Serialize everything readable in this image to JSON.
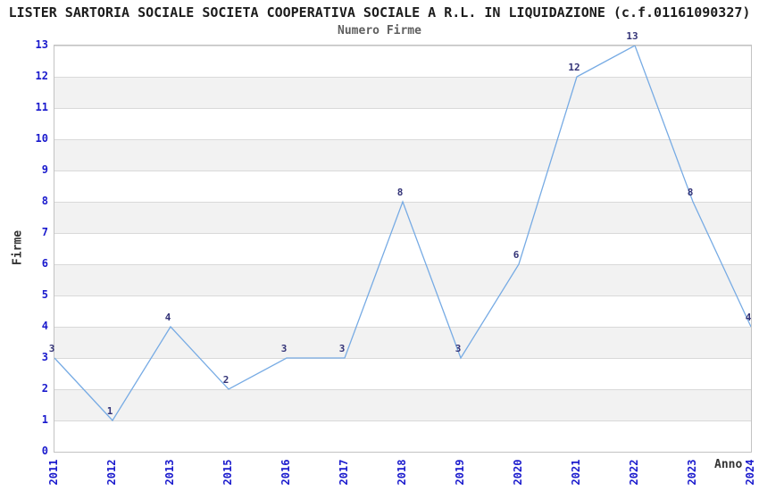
{
  "header": {
    "title": "LISTER SARTORIA SOCIALE SOCIETA COOPERATIVA SOCIALE A R.L. IN LIQUIDAZIONE (c.f.01161090327)",
    "subtitle": "Numero Firme"
  },
  "chart_data": {
    "type": "line",
    "title": "Numero Firme",
    "xlabel": "Anno",
    "ylabel": "Firme",
    "categories": [
      "2011",
      "2012",
      "2013",
      "2015",
      "2016",
      "2017",
      "2018",
      "2019",
      "2020",
      "2021",
      "2022",
      "2023",
      "2024"
    ],
    "values": [
      3,
      1,
      4,
      2,
      3,
      3,
      8,
      3,
      6,
      12,
      13,
      8,
      4
    ],
    "yticks": [
      0,
      1,
      2,
      3,
      4,
      5,
      6,
      7,
      8,
      9,
      10,
      11,
      12,
      13
    ],
    "ylim": [
      0,
      13
    ],
    "grid": true,
    "band_fill": "alternating horizontal bands",
    "legend": "none",
    "colors": {
      "line": "#77abe4",
      "tick_label": "#1a1acd",
      "point_label": "#333377",
      "band": "#f2f2f2",
      "gridline": "#d9d9d9",
      "title": "#1c1c1c",
      "subtitle": "#5f5f5f",
      "axis_title": "#333333"
    }
  }
}
